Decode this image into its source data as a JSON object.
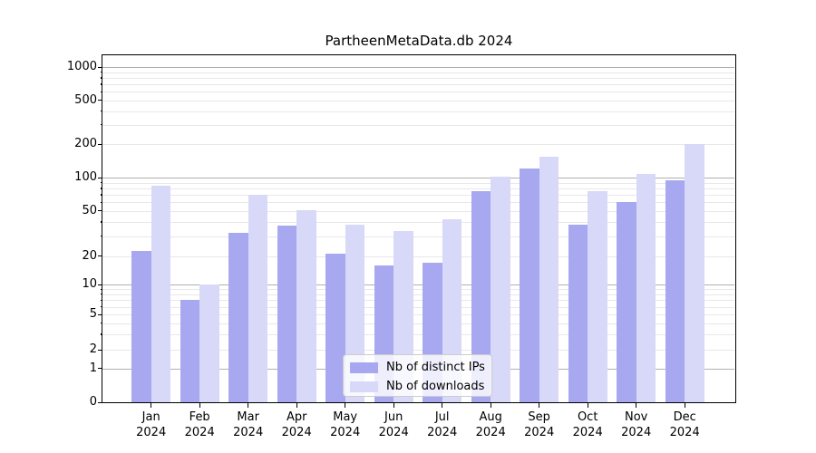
{
  "title": "PartheenMetaData.db 2024",
  "chart_data": {
    "type": "bar",
    "title": "PartheenMetaData.db 2024",
    "year": "2024",
    "categories": [
      "Jan",
      "Feb",
      "Mar",
      "Apr",
      "May",
      "Jun",
      "Jul",
      "Aug",
      "Sep",
      "Oct",
      "Nov",
      "Dec"
    ],
    "series": [
      {
        "name": "Nb of distinct IPs",
        "color": "#a8a8f0",
        "values": [
          22,
          7,
          32,
          37,
          21,
          16,
          17,
          75,
          120,
          38,
          60,
          95
        ]
      },
      {
        "name": "Nb of downloads",
        "color": "#d8d8f8",
        "values": [
          85,
          10,
          70,
          51,
          38,
          33,
          42,
          102,
          155,
          75,
          107,
          200
        ]
      }
    ],
    "yscale": "symlog",
    "yticks": [
      0,
      1,
      2,
      5,
      10,
      20,
      50,
      100,
      200,
      500,
      1000
    ],
    "ylim": [
      0,
      1273
    ],
    "xlabel": "",
    "ylabel": "",
    "grid": true,
    "legend_position": "lower center inside"
  },
  "colors": {
    "grid_decade": "#b0b0b0",
    "grid_minor": "#e8e8e8",
    "axis": "#000000",
    "legend_border": "#cccccc"
  }
}
